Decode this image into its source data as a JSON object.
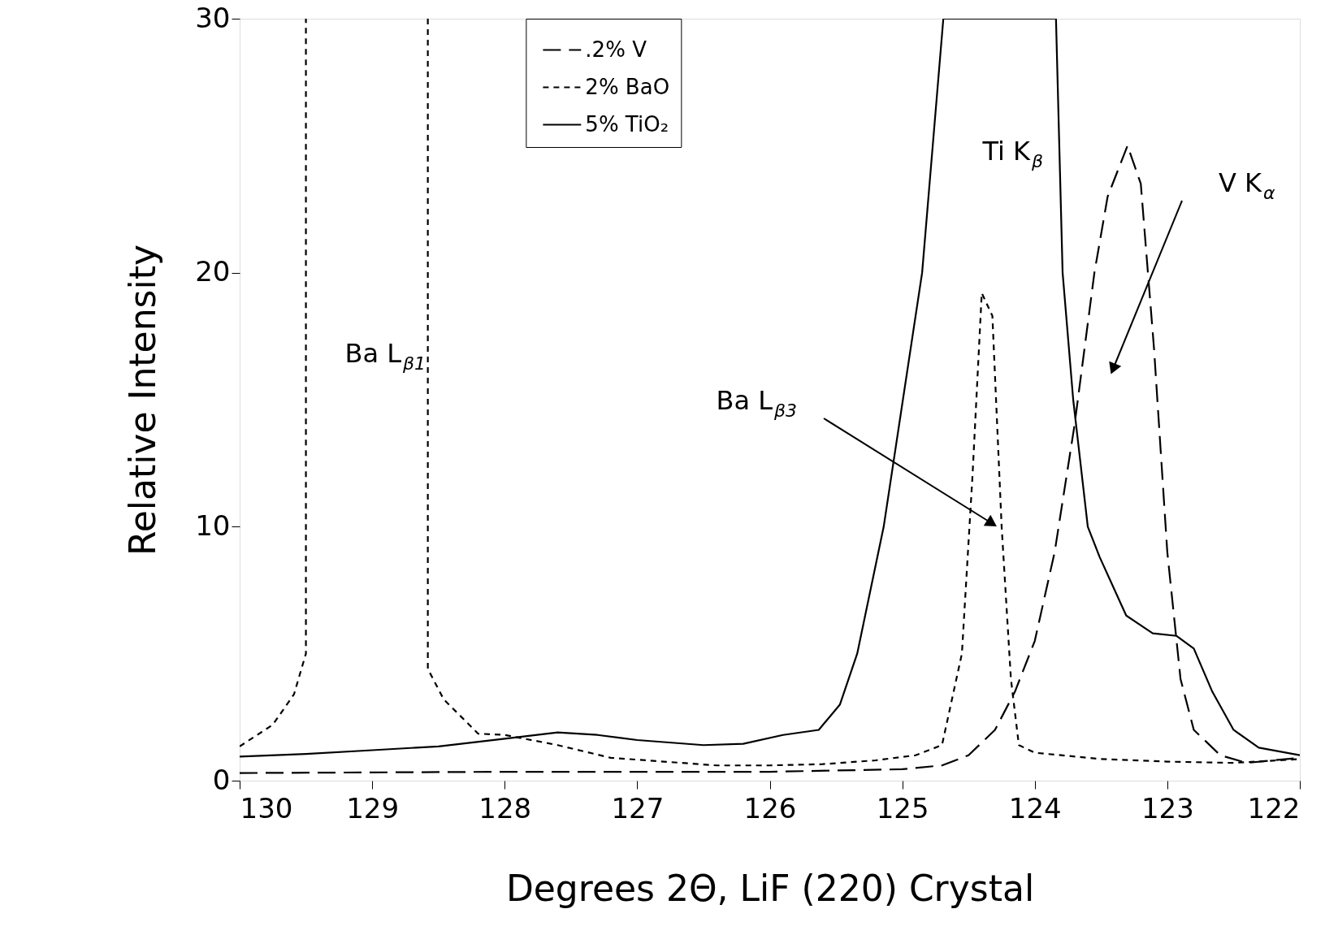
{
  "chart_data": {
    "type": "line",
    "xlabel": "Degrees 2Θ, LiF (220) Crystal",
    "ylabel": "Relative Intensity",
    "xlim": [
      130,
      122
    ],
    "xticks": [
      130,
      129,
      128,
      127,
      126,
      125,
      124,
      123,
      122
    ],
    "ylim": [
      0,
      30
    ],
    "yticks": [
      0,
      10,
      20,
      30
    ],
    "grid": false,
    "legend": "top",
    "marker": "none",
    "series": [
      {
        "name": ".2% V",
        "color": "#000000",
        "line_style": "dashed",
        "x": [
          130,
          128,
          126,
          125,
          124.7,
          124.5,
          124.3,
          124.15,
          124.0,
          123.85,
          123.7,
          123.55,
          123.45,
          123.3,
          123.2,
          123.1,
          123.0,
          122.9,
          122.8,
          122.6,
          122.4,
          122.0
        ],
        "values": [
          0.3,
          0.35,
          0.35,
          0.45,
          0.6,
          1.0,
          2.0,
          3.5,
          5.5,
          9,
          14,
          20,
          23,
          25,
          23.5,
          17,
          9,
          4,
          2,
          1.0,
          0.7,
          0.9
        ]
      },
      {
        "name": "2% BaO",
        "color": "#000000",
        "line_style": "dotted",
        "x": [
          130,
          129.75,
          129.59,
          129.5,
          129.5,
          129.0,
          128.58,
          128.58,
          128.46,
          128.2,
          128.0,
          127.6,
          127.2,
          126.8,
          126.4,
          126.0,
          125.6,
          125.2,
          124.9,
          124.7,
          124.55,
          124.47,
          124.4,
          124.32,
          124.25,
          124.18,
          124.12,
          124.0,
          123.5,
          123.0,
          122.5,
          122.0
        ],
        "values": [
          1.35,
          2.2,
          3.4,
          5.0,
          30,
          null,
          30,
          4.4,
          3.2,
          1.85,
          1.8,
          1.4,
          0.9,
          0.75,
          0.6,
          0.6,
          0.65,
          0.8,
          1.0,
          1.4,
          5,
          12,
          19.2,
          18.3,
          10,
          4,
          1.4,
          1.1,
          0.85,
          0.75,
          0.7,
          0.85
        ]
      },
      {
        "name": "5% TiO₂",
        "color": "#000000",
        "line_style": "solid",
        "x": [
          130,
          129.5,
          129,
          128.5,
          128,
          127.6,
          127.3,
          127,
          126.5,
          126.2,
          125.9,
          125.63,
          125.47,
          125.34,
          125.14,
          124.85,
          124.69,
          123.84,
          123.79,
          123.71,
          123.6,
          123.51,
          123.31,
          123.11,
          122.93,
          122.8,
          122.66,
          122.5,
          122.31,
          122.0
        ],
        "values": [
          0.95,
          1.05,
          1.2,
          1.35,
          1.65,
          1.9,
          1.8,
          1.6,
          1.4,
          1.45,
          1.8,
          2,
          3,
          5,
          10,
          20,
          30,
          30,
          20,
          15,
          10,
          8.8,
          6.5,
          5.8,
          5.7,
          5.2,
          3.5,
          2.0,
          1.3,
          1.0
        ]
      }
    ],
    "annotations": [
      "Ba L$_{β1}$",
      "Ba L$_{β3}$",
      "Ti K$_{β}$",
      "V K$_{α}$"
    ]
  }
}
